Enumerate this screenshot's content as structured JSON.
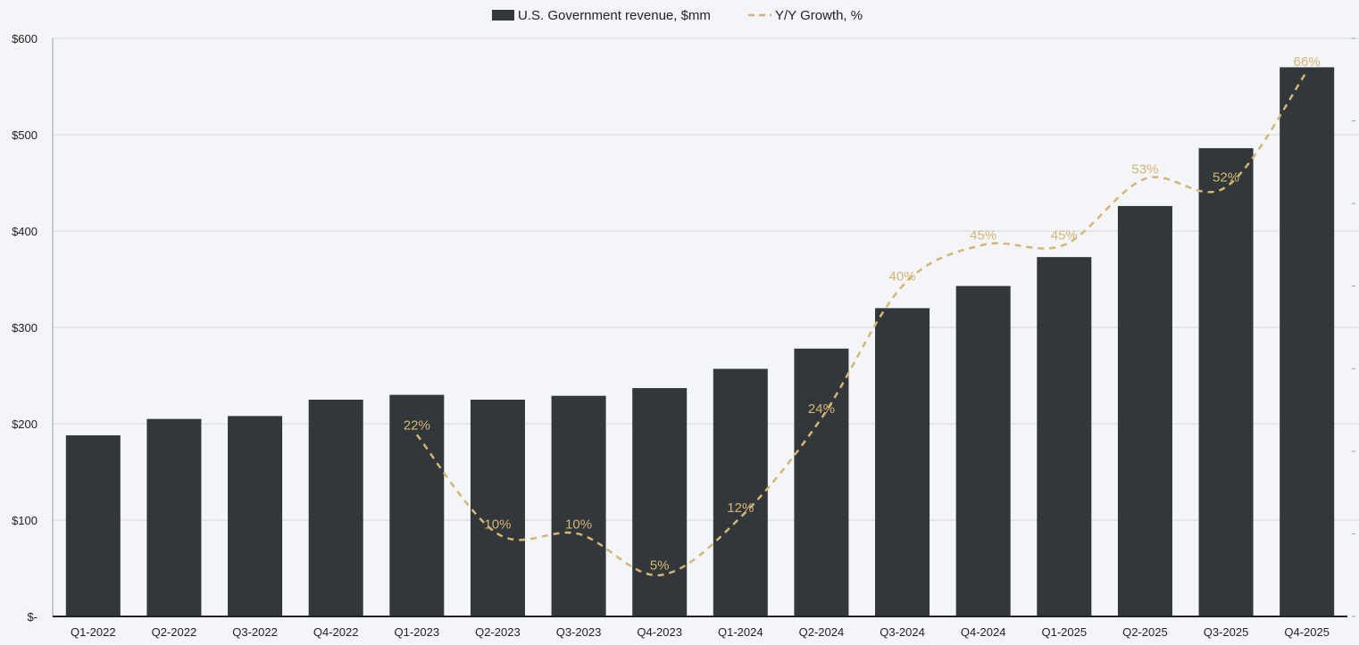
{
  "colors": {
    "background": "#f3f5f8",
    "bar": "#32373b",
    "growth_line": "#d4b574",
    "gridline": "#d3d5d8",
    "axis": "#222222"
  },
  "chart_data": {
    "type": "bar",
    "title": "",
    "xlabel": "",
    "ylabel": "",
    "ylim": [
      0,
      600
    ],
    "y_ticks": [
      0,
      100,
      200,
      300,
      400,
      500,
      600
    ],
    "y_tick_labels": [
      "$-",
      "$100",
      "$200",
      "$300",
      "$400",
      "$500",
      "$600"
    ],
    "grid": true,
    "legend_position": "top-center",
    "categories": [
      "Q1-2022",
      "Q2-2022",
      "Q3-2022",
      "Q4-2022",
      "Q1-2023",
      "Q2-2023",
      "Q3-2023",
      "Q4-2023",
      "Q1-2024",
      "Q2-2024",
      "Q3-2024",
      "Q4-2024",
      "Q1-2025",
      "Q2-2025",
      "Q3-2025",
      "Q4-2025"
    ],
    "series": [
      {
        "name": "U.S. Government revenue, $mm",
        "type": "bar",
        "values": [
          188,
          205,
          208,
          225,
          230,
          225,
          229,
          237,
          257,
          278,
          320,
          343,
          373,
          426,
          486,
          570
        ]
      },
      {
        "name": "Y/Y Growth, %",
        "type": "line",
        "style": "dashed",
        "secondary_axis": true,
        "secondary_ylim": [
          0,
          70
        ],
        "values": [
          null,
          null,
          null,
          null,
          22,
          10,
          10,
          5,
          12,
          24,
          40,
          45,
          45,
          53,
          52,
          66
        ],
        "labels": [
          null,
          null,
          null,
          null,
          "22%",
          "10%",
          "10%",
          "5%",
          "12%",
          "24%",
          "40%",
          "45%",
          "45%",
          "53%",
          "52%",
          "66%"
        ]
      }
    ]
  }
}
